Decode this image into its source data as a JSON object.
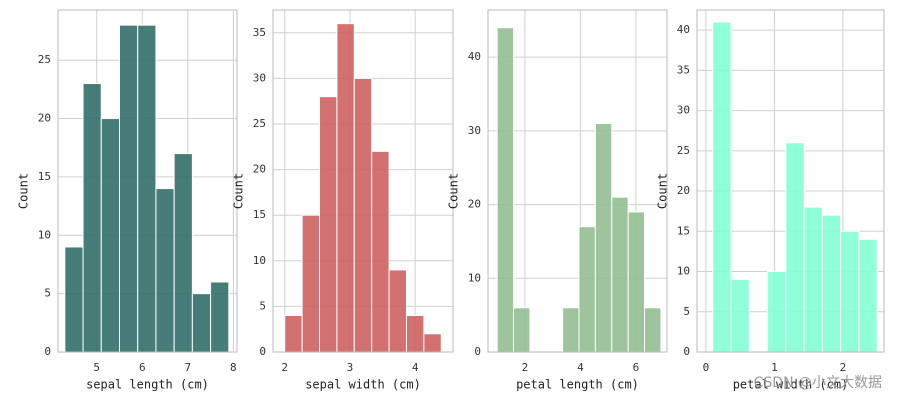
{
  "chart_data": [
    {
      "type": "histogram",
      "xlabel": "sepal length (cm)",
      "ylabel": "Count",
      "color": "#2e6b67",
      "bins": [
        4.3,
        4.7,
        5.1,
        5.5,
        5.9,
        6.3,
        6.7,
        7.1,
        7.5,
        7.9
      ],
      "values": [
        9,
        23,
        20,
        28,
        28,
        14,
        17,
        5,
        6
      ],
      "xlim": [
        4.15,
        8.08
      ],
      "xticks": [
        5,
        6,
        7,
        8
      ],
      "ylim": [
        0,
        29.3
      ],
      "yticks": [
        0,
        5,
        10,
        15,
        20,
        25
      ],
      "grid": true
    },
    {
      "type": "histogram",
      "xlabel": "sepal width (cm)",
      "ylabel": "Count",
      "color": "#cd5c5c",
      "bins": [
        2.0,
        2.2667,
        2.5333,
        2.8,
        3.0667,
        3.3333,
        3.6,
        3.8667,
        4.1333,
        4.4
      ],
      "values": [
        4,
        15,
        28,
        36,
        30,
        22,
        9,
        4,
        2
      ],
      "xlim": [
        1.82,
        4.58
      ],
      "xticks": [
        2,
        3,
        4
      ],
      "ylim": [
        0,
        37.5
      ],
      "yticks": [
        0,
        5,
        10,
        15,
        20,
        25,
        30,
        35
      ],
      "grid": true
    },
    {
      "type": "histogram",
      "xlabel": "petal length (cm)",
      "ylabel": "Count",
      "color": "#8fbc8f",
      "bins": [
        1.0,
        1.59,
        2.18,
        2.77,
        3.36,
        3.95,
        4.54,
        5.13,
        5.72,
        6.31,
        6.9
      ],
      "values": [
        44,
        6,
        0,
        0,
        6,
        17,
        31,
        21,
        19,
        6
      ],
      "xlim": [
        0.67,
        7.12
      ],
      "xticks": [
        2,
        4,
        6
      ],
      "ylim": [
        0,
        46.4
      ],
      "yticks": [
        0,
        10,
        20,
        30,
        40
      ],
      "grid": true
    },
    {
      "type": "histogram",
      "xlabel": "petal width (cm)",
      "ylabel": "Count",
      "color": "#7fffd4",
      "bins": [
        0.1,
        0.3667,
        0.6333,
        0.9,
        1.1667,
        1.4333,
        1.7,
        1.9667,
        2.2333,
        2.5
      ],
      "values": [
        41,
        9,
        0,
        10,
        26,
        18,
        17,
        15,
        14
      ],
      "xlim": [
        -0.13,
        2.6
      ],
      "xticks": [
        0,
        1,
        2
      ],
      "ylim": [
        0,
        42.5
      ],
      "yticks": [
        0,
        5,
        10,
        15,
        20,
        25,
        30,
        35,
        40
      ],
      "grid": true
    }
  ],
  "watermark": "CSDN @小文大数据"
}
